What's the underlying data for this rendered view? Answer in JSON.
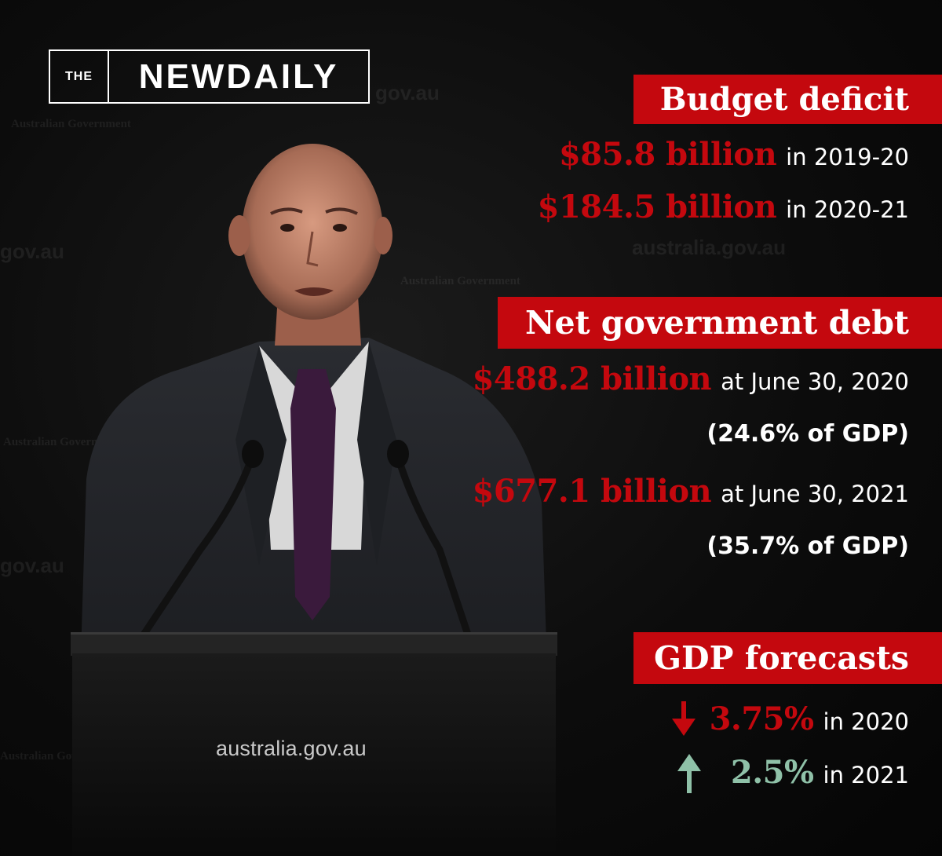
{
  "logo": {
    "the": "THE",
    "name": "NEWDAILY"
  },
  "watermarks": {
    "gov": "gov.au",
    "govfull": "australia.gov.au",
    "ag": "Australian Government"
  },
  "podium": {
    "text": "australia.gov.au"
  },
  "budget": {
    "title": "Budget deficit",
    "rows": [
      {
        "amount": "$85.8 billion",
        "label": "in 2019-20"
      },
      {
        "amount": "$184.5 billion",
        "label": "in 2020-21"
      }
    ]
  },
  "debt": {
    "title": "Net government debt",
    "rows": [
      {
        "amount": "$488.2 billion",
        "label": "at June 30, 2020",
        "pct": "(24.6% of GDP)"
      },
      {
        "amount": "$677.1 billion",
        "label": "at June 30, 2021",
        "pct": "(35.7% of GDP)"
      }
    ]
  },
  "gdp": {
    "title": "GDP forecasts",
    "rows": [
      {
        "direction": "down",
        "icon": "arrow-down-icon",
        "value": "3.75%",
        "label": "in 2020",
        "color": "#c4080e"
      },
      {
        "direction": "up",
        "icon": "arrow-up-icon",
        "value": "2.5%",
        "label": "in 2021",
        "color": "#8fc1a8"
      }
    ]
  },
  "colors": {
    "accent": "#c4080e",
    "positive": "#8fc1a8",
    "background": "#0a0a0a"
  }
}
